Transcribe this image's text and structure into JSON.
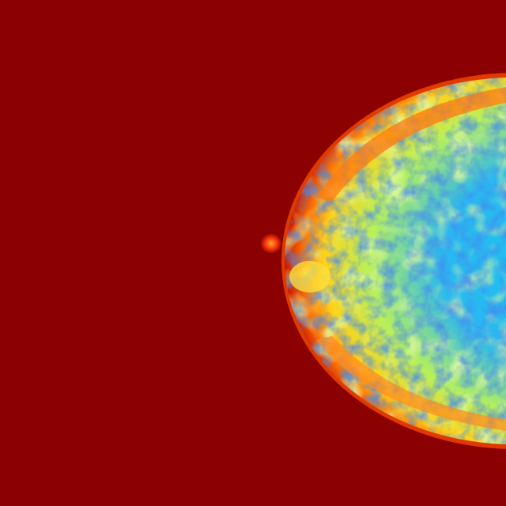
{
  "image": {
    "subject": "breast-tissue-heatmap",
    "colors": {
      "background": "#8b0000",
      "edge_orange": "#ff6a00",
      "edge_yellow": "#ffd21a",
      "mid_green": "#b8f05a",
      "cyan": "#19c4f0",
      "deep_blue": "#1040d8",
      "nipple_core": "#ff3a10"
    }
  }
}
